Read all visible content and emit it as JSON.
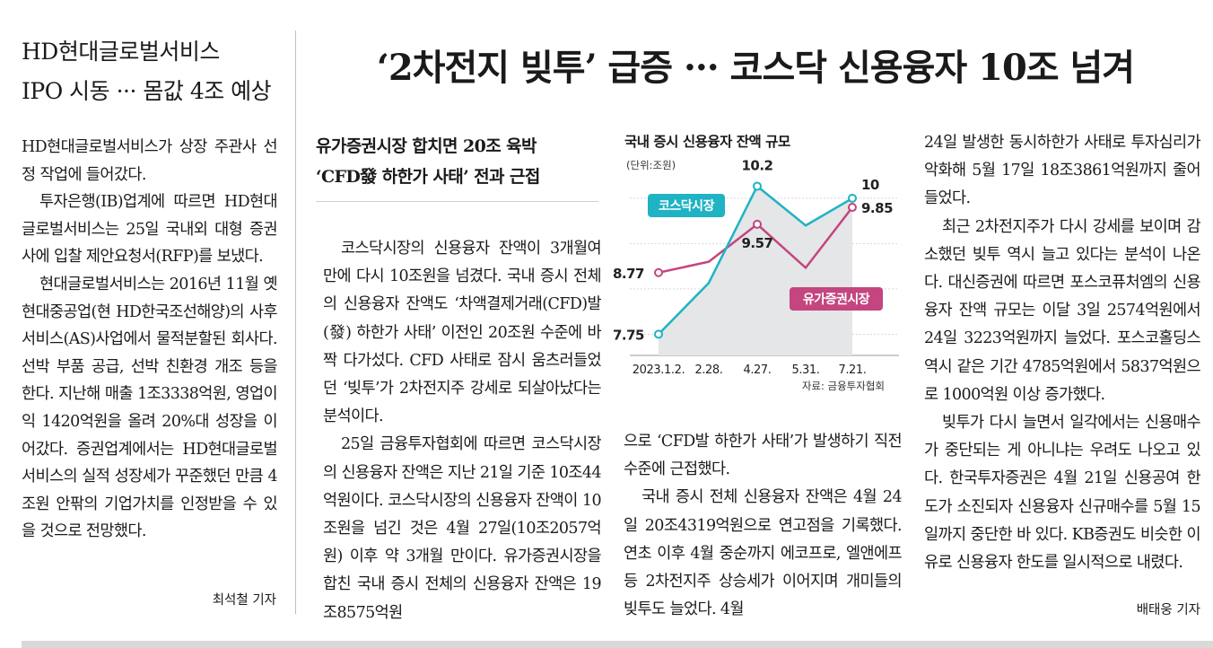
{
  "sidebar": {
    "title_lines": [
      "HD현대글로벌서비스",
      "IPO 시동 ··· 몸값 4조 예상"
    ],
    "paragraphs": [
      "HD현대글로벌서비스가 상장 주관사 선정 작업에 들어갔다.",
      "투자은행(IB)업계에 따르면 HD현대글로벌서비스는 25일 국내외 대형 증권사에 입찰 제안요청서(RFP)를 보냈다.",
      "현대글로벌서비스는 2016년 11월 옛 현대중공업(현 HD한국조선해양)의 사후서비스(AS)사업에서 물적분할된 회사다. 선박 부품 공급, 선박 친환경 개조 등을 한다. 지난해 매출 1조3338억원, 영업이익 1420억원을 올려 20%대 성장을 이어갔다. 증권업계에서는 HD현대글로벌서비스의 실적 성장세가 꾸준했던 만큼 4조원 안팎의 기업가치를 인정받을 수 있을 것으로 전망했다."
    ],
    "byline": "최석철 기자"
  },
  "article": {
    "headline": "‘2차전지 빚투’ 급증 ··· 코스닥 신용융자 10조 넘겨",
    "subhead_lines": [
      "유가증권시장 합치면 20조 육박",
      "‘CFD發 하한가 사태’ 전과 근접"
    ],
    "col2_paragraphs": [
      "코스닥시장의 신용융자 잔액이 3개월여 만에 다시 10조원을 넘겼다. 국내 증시 전체의 신용융자 잔액도 ‘차액결제거래(CFD)발(發) 하한가 사태’ 이전인 20조원 수준에 바짝 다가섰다. CFD 사태로 잠시 움츠러들었던 ‘빚투’가 2차전지주 강세로 되살아났다는 분석이다.",
      "25일 금융투자협회에 따르면 코스닥시장의 신용융자 잔액은 지난 21일 기준 10조44억원이다. 코스닥시장의 신용융자 잔액이 10조원을 넘긴 것은 4월 27일(10조2057억원) 이후 약 3개월 만이다. 유가증권시장을 합친 국내 증시 전체의 신용융자 잔액은 19조8575억원"
    ],
    "col3_paragraphs": [
      "으로 ‘CFD발 하한가 사태’가 발생하기 직전 수준에 근접했다.",
      "국내 증시 전체 신용융자 잔액은 4월 24일 20조4319억원으로 연고점을 기록했다. 연초 이후 4월 중순까지 에코프로, 엘앤에프 등 2차전지주 상승세가 이어지며 개미들의 빚투도 늘었다. 4월"
    ],
    "col4_paragraphs": [
      "24일 발생한 동시하한가 사태로 투자심리가 악화해 5월 17일 18조3861억원까지 줄어들었다.",
      "최근 2차전지주가 다시 강세를 보이며 감소했던 빚투 역시 늘고 있다는 분석이 나온다. 대신증권에 따르면 포스코퓨처엠의 신용융자 잔액 규모는 이달 3일 2574억원에서 24일 3223억원까지 늘었다. 포스코홀딩스 역시 같은 기간 4785억원에서 5837억원으로 1000억원 이상 증가했다.",
      "빚투가 다시 늘면서 일각에서는 신용매수가 중단되는 게 아니냐는 우려도 나오고 있다. 한국투자증권은 4월 21일 신용공여 한도가 소진되자 신용융자 신규매수를 5월 15일까지 중단한 바 있다. KB증권도 비슷한 이유로 신용융자 한도를 일시적으로 내렸다."
    ],
    "byline": "배태웅 기자"
  },
  "chart_data": {
    "type": "line",
    "title": "국내 증시 신용융자 잔액 규모",
    "unit": "(단위:조원)",
    "source": "자료: 금융투자협회",
    "categories": [
      "2023.1.2.",
      "2.28.",
      "4.27.",
      "5.31.",
      "7.21."
    ],
    "series": [
      {
        "name": "코스닥시장",
        "color": "#1fb3c4",
        "fill": "#e4e6e8",
        "values": [
          7.75,
          8.6,
          10.2,
          9.55,
          10.0
        ],
        "point_labels": [
          "7.75",
          "",
          "10.2",
          "",
          "10"
        ],
        "marked_points": [
          0,
          2,
          4
        ]
      },
      {
        "name": "유가증권시장",
        "color": "#c4457f",
        "values": [
          8.77,
          8.95,
          9.57,
          8.85,
          9.85
        ],
        "point_labels": [
          "8.77",
          "",
          "9.57",
          "",
          "9.85"
        ],
        "marked_points": [
          0,
          2,
          4
        ]
      }
    ],
    "ylim": [
      7.4,
      10.4
    ],
    "grid": "horizontal"
  }
}
